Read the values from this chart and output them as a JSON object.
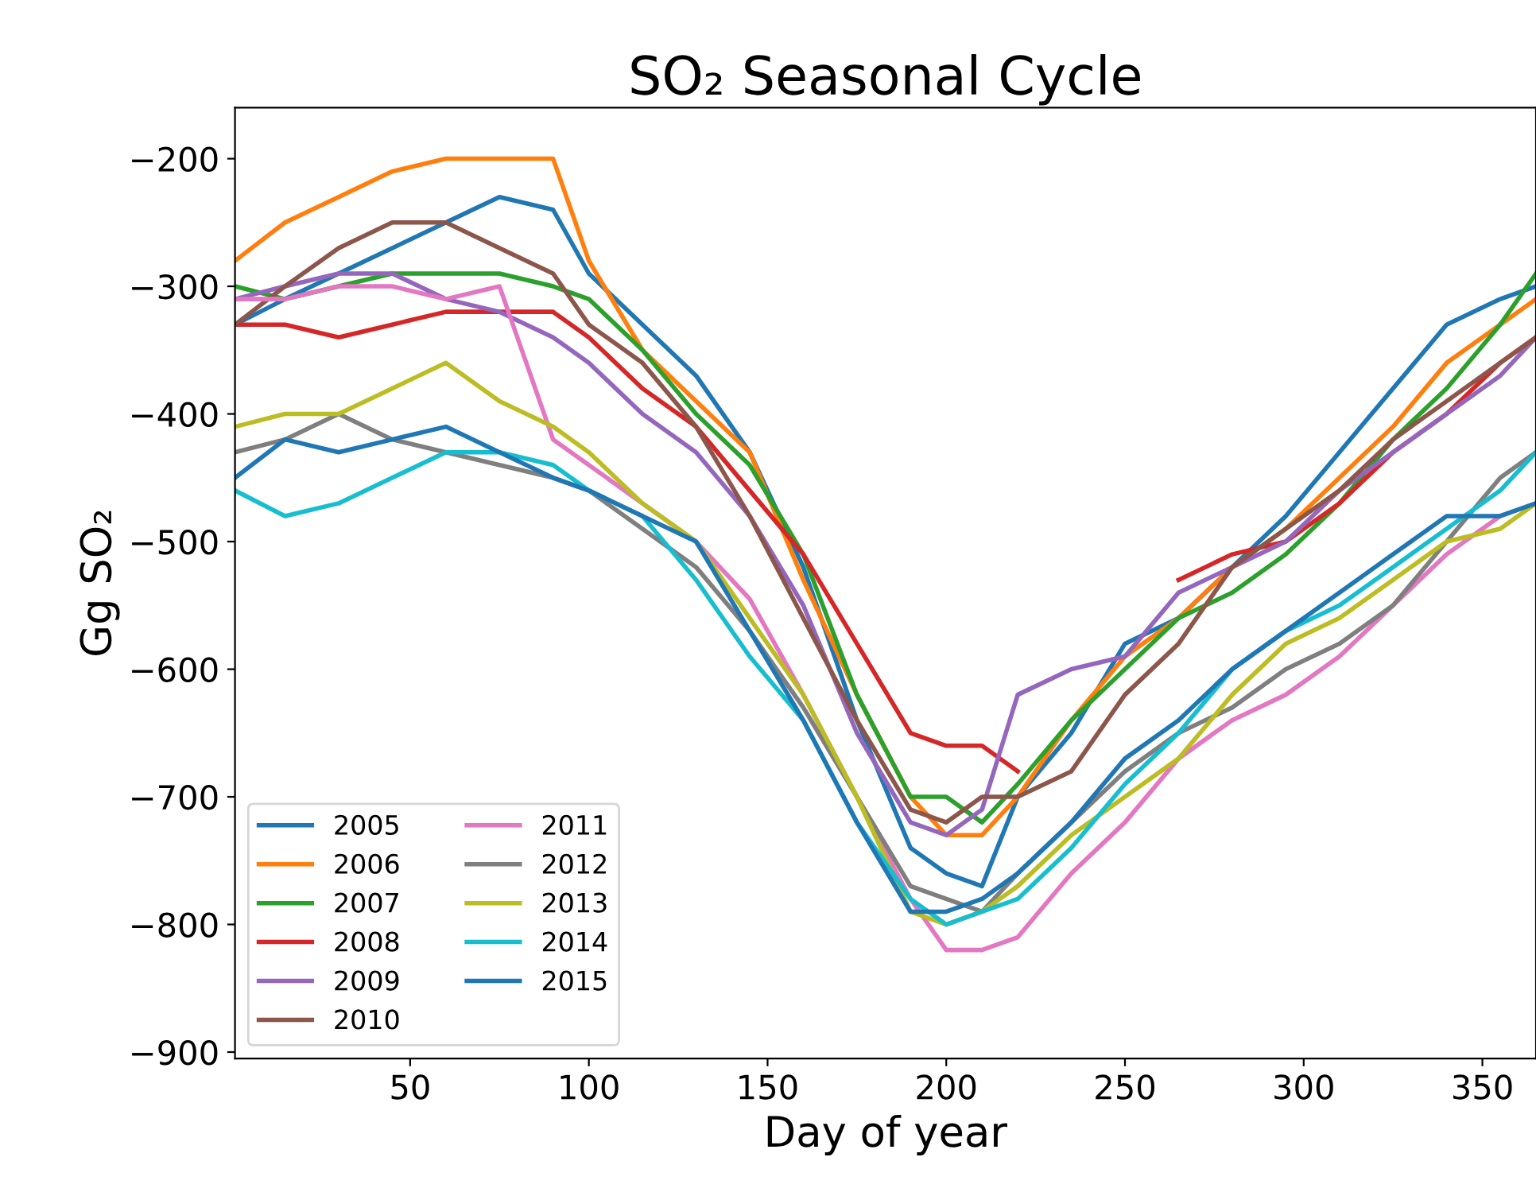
{
  "chart_data": {
    "type": "line",
    "title": "SO₂ Seasonal Cycle",
    "xlabel": "Day of year",
    "ylabel": "Gg SO₂",
    "x": [
      1,
      15,
      30,
      45,
      60,
      75,
      90,
      100,
      115,
      130,
      145,
      160,
      175,
      190,
      200,
      210,
      220,
      235,
      250,
      265,
      280,
      295,
      310,
      325,
      340,
      355,
      365
    ],
    "xlim": [
      1,
      365
    ],
    "xticks": [
      50,
      100,
      150,
      200,
      250,
      300,
      350
    ],
    "ylim": [
      -905,
      -160
    ],
    "yticks": [
      {
        "value": -900,
        "label": "−900"
      },
      {
        "value": -800,
        "label": "−800"
      },
      {
        "value": -700,
        "label": "−700"
      },
      {
        "value": -600,
        "label": "−600"
      },
      {
        "value": -500,
        "label": "−500"
      },
      {
        "value": -400,
        "label": "−400"
      },
      {
        "value": -300,
        "label": "−300"
      },
      {
        "value": -200,
        "label": "−200"
      }
    ],
    "grid": false,
    "legend": "bottom left",
    "line_style": "solid",
    "marker": "none",
    "series": [
      {
        "name": "2005",
        "color": "#1f77b4",
        "values": [
          -330,
          -310,
          -290,
          -270,
          -250,
          -230,
          -240,
          -290,
          -330,
          -370,
          -430,
          -520,
          -640,
          -740,
          -760,
          -770,
          -700,
          -650,
          -580,
          -560,
          -520,
          -480,
          -430,
          -380,
          -330,
          -310,
          -300
        ]
      },
      {
        "name": "2006",
        "color": "#ff7f0e",
        "values": [
          -280,
          -250,
          -230,
          -210,
          -200,
          -200,
          -200,
          -280,
          -350,
          -390,
          -430,
          -530,
          -620,
          -700,
          -730,
          -730,
          -700,
          -640,
          -590,
          -560,
          -520,
          -490,
          -450,
          -410,
          -360,
          -330,
          -310
        ]
      },
      {
        "name": "2007",
        "color": "#2ca02c",
        "values": [
          -300,
          -310,
          -300,
          -290,
          -290,
          -290,
          -300,
          -310,
          -350,
          -400,
          -440,
          -510,
          -620,
          -700,
          -700,
          -720,
          -690,
          -640,
          -600,
          -560,
          -540,
          -510,
          -470,
          -420,
          -380,
          -330,
          -290
        ]
      },
      {
        "name": "2008",
        "color": "#d62728",
        "values": [
          -330,
          -330,
          -340,
          -330,
          -320,
          -320,
          -320,
          -340,
          -380,
          -410,
          -460,
          -510,
          -580,
          -650,
          -660,
          -660,
          -680,
          null,
          null,
          -530,
          -510,
          -500,
          -470,
          -430,
          -400,
          -360,
          -340
        ]
      },
      {
        "name": "2009",
        "color": "#9467bd",
        "values": [
          -310,
          -300,
          -290,
          -290,
          -310,
          -320,
          -340,
          -360,
          -400,
          -430,
          -480,
          -550,
          -650,
          -720,
          -730,
          -710,
          -620,
          -600,
          -590,
          -540,
          -520,
          -500,
          -460,
          -430,
          -400,
          -370,
          -340
        ]
      },
      {
        "name": "2010",
        "color": "#8c564b",
        "values": [
          -330,
          -300,
          -270,
          -250,
          -250,
          -270,
          -290,
          -330,
          -360,
          -410,
          -480,
          -560,
          -640,
          -710,
          -720,
          -700,
          -700,
          -680,
          -620,
          -580,
          -520,
          -490,
          -460,
          -420,
          -390,
          -360,
          -340
        ]
      },
      {
        "name": "2011",
        "color": "#e377c2",
        "values": [
          -310,
          -310,
          -300,
          -300,
          -310,
          -300,
          -420,
          -440,
          -470,
          -500,
          -545,
          -620,
          -700,
          -780,
          -820,
          -820,
          -810,
          -760,
          -720,
          -670,
          -640,
          -620,
          -590,
          -550,
          -510,
          -480,
          -470
        ]
      },
      {
        "name": "2012",
        "color": "#7f7f7f",
        "values": [
          -430,
          -420,
          -400,
          -420,
          -430,
          -440,
          -450,
          -460,
          -490,
          -520,
          -570,
          -630,
          -700,
          -770,
          -780,
          -790,
          -760,
          -720,
          -680,
          -650,
          -630,
          -600,
          -580,
          -550,
          -500,
          -450,
          -430
        ]
      },
      {
        "name": "2013",
        "color": "#bcbd22",
        "values": [
          -410,
          -400,
          -400,
          -380,
          -360,
          -390,
          -410,
          -430,
          -470,
          -500,
          -560,
          -620,
          -700,
          -790,
          -800,
          -790,
          -770,
          -730,
          -700,
          -670,
          -620,
          -580,
          -560,
          -530,
          -500,
          -490,
          -470
        ]
      },
      {
        "name": "2014",
        "color": "#17becf",
        "values": [
          -460,
          -480,
          -470,
          -450,
          -430,
          -430,
          -440,
          -460,
          -480,
          -530,
          -590,
          -640,
          -720,
          -780,
          -800,
          -790,
          -780,
          -740,
          -690,
          -650,
          -600,
          -570,
          -550,
          -520,
          -490,
          -460,
          -430
        ]
      },
      {
        "name": "2015",
        "color": "#1f77b4",
        "values": [
          -450,
          -420,
          -430,
          -420,
          -410,
          -430,
          -450,
          -460,
          -480,
          -500,
          -570,
          -640,
          -720,
          -790,
          -790,
          -780,
          -760,
          -720,
          -670,
          -640,
          -600,
          -570,
          -540,
          -510,
          -480,
          -480,
          -470
        ]
      }
    ]
  }
}
